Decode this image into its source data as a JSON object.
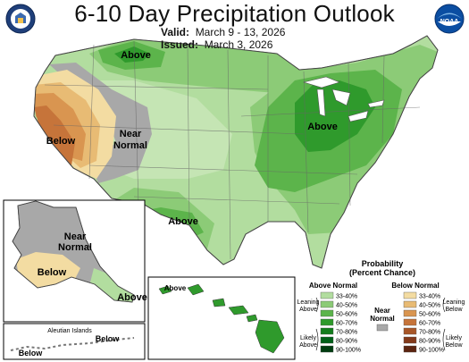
{
  "header": {
    "title": "6-10 Day Precipitation Outlook",
    "valid_label": "Valid:",
    "valid_dates": "March 9 - 13, 2026",
    "issued_label": "Issued:",
    "issued_date": "March 3, 2026"
  },
  "logos": {
    "left": {
      "icon": "doc-seal-icon"
    },
    "right": {
      "icon": "noaa-logo-icon",
      "text": "NOAA"
    }
  },
  "colors": {
    "above": [
      "#b2dd9f",
      "#8ccb77",
      "#5cb44b",
      "#2f9a2c",
      "#137d1d",
      "#006018",
      "#003c10"
    ],
    "below": [
      "#f3dca2",
      "#e8bb74",
      "#d99550",
      "#c6743a",
      "#a85628",
      "#83391a",
      "#5c2410"
    ],
    "near_normal": "#a8a8a8"
  },
  "map_labels": {
    "conus_above_north": "Above",
    "conus_below": "Below",
    "conus_near_normal_1": "Near",
    "conus_near_normal_2": "Normal",
    "conus_above_east": "Above",
    "conus_above_south": "Above",
    "alaska_near_1": "Near",
    "alaska_near_2": "Normal",
    "alaska_below": "Below",
    "alaska_above": "Above",
    "hawaii_above": "Above",
    "aleutian_title": "Aleutian Islands",
    "aleutian_below_1": "Below",
    "aleutian_below_2": "Below"
  },
  "legend": {
    "title_1": "Probability",
    "title_2": "(Percent Chance)",
    "above_header": "Above Normal",
    "below_header": "Below Normal",
    "near_normal_1": "Near",
    "near_normal_2": "Normal",
    "ranges": [
      "33-40%",
      "40-50%",
      "50-60%",
      "60-70%",
      "70-80%",
      "80-90%",
      "90-100%"
    ],
    "leaning_above_1": "Leaning",
    "leaning_above_2": "Above",
    "likely_above_1": "Likely",
    "likely_above_2": "Above",
    "leaning_below_1": "Leaning",
    "leaning_below_2": "Below",
    "likely_below_1": "Likely",
    "likely_below_2": "Below"
  }
}
